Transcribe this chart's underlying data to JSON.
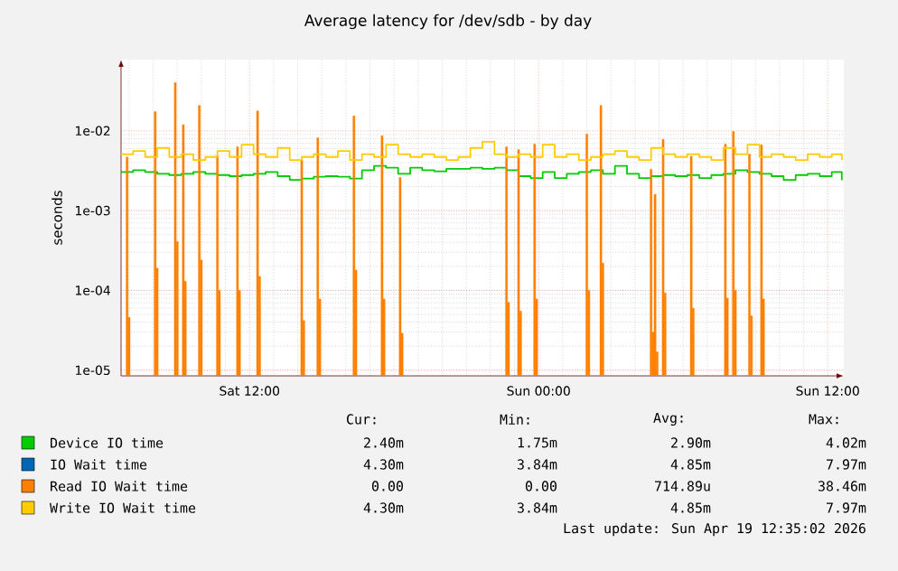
{
  "chart_data": {
    "type": "step",
    "title": "Average latency for /dev/sdb - by day",
    "ylabel": "seconds",
    "log": "y",
    "grid": true,
    "legend": "bottom",
    "xlim": [
      "2026-04-18T06:40",
      "2026-04-19T12:40"
    ],
    "xticks": [
      {
        "value": "2026-04-18T12:00",
        "label": "Sat 12:00"
      },
      {
        "value": "2026-04-19T00:00",
        "label": "Sun 00:00"
      },
      {
        "value": "2026-04-19T12:00",
        "label": "Sun 12:00"
      }
    ],
    "ylim": [
      8.5e-06,
      0.078
    ],
    "yticks": [
      {
        "value": 1e-05,
        "label": "1e-05"
      },
      {
        "value": 0.0001,
        "label": "1e-04"
      },
      {
        "value": 0.001,
        "label": "1e-03"
      },
      {
        "value": 0.01,
        "label": "1e-02"
      }
    ],
    "x": [
      "2026-04-18T06:40",
      "2026-04-18T07:10",
      "2026-04-18T07:40",
      "2026-04-18T08:10",
      "2026-04-18T08:40",
      "2026-04-18T09:10",
      "2026-04-18T09:40",
      "2026-04-18T10:10",
      "2026-04-18T10:40",
      "2026-04-18T11:10",
      "2026-04-18T11:40",
      "2026-04-18T12:10",
      "2026-04-18T12:40",
      "2026-04-18T13:10",
      "2026-04-18T13:40",
      "2026-04-18T14:10",
      "2026-04-18T14:40",
      "2026-04-18T15:10",
      "2026-04-18T15:40",
      "2026-04-18T16:10",
      "2026-04-18T16:40",
      "2026-04-18T17:10",
      "2026-04-18T17:40",
      "2026-04-18T18:10",
      "2026-04-18T18:40",
      "2026-04-18T19:10",
      "2026-04-18T19:40",
      "2026-04-18T20:10",
      "2026-04-18T20:40",
      "2026-04-18T21:10",
      "2026-04-18T21:40",
      "2026-04-18T22:10",
      "2026-04-18T22:40",
      "2026-04-18T23:10",
      "2026-04-18T23:40",
      "2026-04-19T00:10",
      "2026-04-19T00:40",
      "2026-04-19T01:10",
      "2026-04-19T01:40",
      "2026-04-19T02:10",
      "2026-04-19T02:40",
      "2026-04-19T03:10",
      "2026-04-19T03:40",
      "2026-04-19T04:10",
      "2026-04-19T04:40",
      "2026-04-19T05:10",
      "2026-04-19T05:40",
      "2026-04-19T06:10",
      "2026-04-19T06:40",
      "2026-04-19T07:10",
      "2026-04-19T07:40",
      "2026-04-19T08:10",
      "2026-04-19T08:40",
      "2026-04-19T09:10",
      "2026-04-19T09:40",
      "2026-04-19T10:10",
      "2026-04-19T10:40",
      "2026-04-19T11:10",
      "2026-04-19T11:40",
      "2026-04-19T12:10",
      "2026-04-19T12:35"
    ],
    "series": [
      {
        "name": "Device IO time",
        "color": "#00cc00",
        "values": [
          0.00305,
          0.00321,
          0.00305,
          0.00289,
          0.00279,
          0.00289,
          0.00305,
          0.00289,
          0.00279,
          0.0027,
          0.00279,
          0.00289,
          0.00305,
          0.0027,
          0.00243,
          0.00252,
          0.00265,
          0.0027,
          0.00265,
          0.00252,
          0.00321,
          0.00363,
          0.00344,
          0.00289,
          0.00344,
          0.00321,
          0.0031,
          0.00333,
          0.00333,
          0.00344,
          0.00333,
          0.00344,
          0.00321,
          0.0027,
          0.00256,
          0.00305,
          0.00256,
          0.00289,
          0.00305,
          0.00321,
          0.00289,
          0.00363,
          0.00289,
          0.00256,
          0.0027,
          0.00279,
          0.0027,
          0.00279,
          0.00256,
          0.00279,
          0.00289,
          0.00321,
          0.00305,
          0.00289,
          0.0027,
          0.00243,
          0.00279,
          0.00289,
          0.0027,
          0.00305,
          0.0024
        ]
      },
      {
        "name": "IO Wait time",
        "color": "#0066b3",
        "values": [
          null,
          null,
          null,
          null,
          null,
          null,
          null,
          null,
          null,
          null,
          null,
          null,
          null,
          null,
          null,
          null,
          null,
          null,
          null,
          null,
          null,
          null,
          null,
          null,
          null,
          null,
          null,
          null,
          null,
          null,
          null,
          null,
          null,
          null,
          null,
          null,
          null,
          null,
          null,
          null,
          null,
          null,
          null,
          null,
          null,
          null,
          null,
          null,
          null,
          null,
          null,
          null,
          null,
          null,
          null,
          null,
          null,
          null,
          null,
          null,
          null
        ]
      },
      {
        "name": "Read IO Wait time",
        "color": "#ff8000",
        "type": "bar",
        "x": [
          "2026-04-18T06:55",
          "2026-04-18T07:00",
          "2026-04-18T08:05",
          "2026-04-18T08:10",
          "2026-04-18T08:55",
          "2026-04-18T09:00",
          "2026-04-18T09:15",
          "2026-04-18T09:20",
          "2026-04-18T09:55",
          "2026-04-18T10:00",
          "2026-04-18T10:40",
          "2026-04-18T10:45",
          "2026-04-18T11:30",
          "2026-04-18T11:35",
          "2026-04-18T12:20",
          "2026-04-18T12:25",
          "2026-04-18T14:10",
          "2026-04-18T14:15",
          "2026-04-18T14:50",
          "2026-04-18T14:55",
          "2026-04-18T16:20",
          "2026-04-18T16:25",
          "2026-04-18T17:30",
          "2026-04-18T17:35",
          "2026-04-18T18:15",
          "2026-04-18T18:20",
          "2026-04-18T22:40",
          "2026-04-18T22:45",
          "2026-04-18T23:10",
          "2026-04-18T23:15",
          "2026-04-18T23:50",
          "2026-04-18T23:55",
          "2026-04-19T02:00",
          "2026-04-19T02:05",
          "2026-04-19T02:35",
          "2026-04-19T02:40",
          "2026-04-19T04:40",
          "2026-04-19T04:45",
          "2026-04-19T04:50",
          "2026-04-19T04:55",
          "2026-04-19T05:10",
          "2026-04-19T05:15",
          "2026-04-19T06:20",
          "2026-04-19T06:25",
          "2026-04-19T07:45",
          "2026-04-19T07:50",
          "2026-04-19T08:05",
          "2026-04-19T08:10",
          "2026-04-19T08:45",
          "2026-04-19T08:50",
          "2026-04-19T09:15",
          "2026-04-19T09:20"
        ],
        "values": [
          0.0047,
          4.6e-05,
          0.0174,
          0.00019,
          0.04,
          0.00041,
          0.0119,
          0.00013,
          0.0208,
          0.00024,
          0.0049,
          0.0001,
          0.0063,
          0.0001,
          0.0178,
          0.00015,
          0.0043,
          4.2e-05,
          0.0082,
          7.8e-05,
          0.0154,
          0.00018,
          0.0087,
          7.8e-05,
          0.0026,
          2.9e-05,
          0.0063,
          7.1e-05,
          0.0058,
          5.5e-05,
          0.0068,
          7.8e-05,
          0.0091,
          0.0001,
          0.0208,
          0.00022,
          0.0033,
          3e-05,
          0.0016,
          1.7e-05,
          0.0078,
          9.3e-05,
          0.0048,
          6e-05,
          0.0068,
          8e-05,
          0.0098,
          0.0001,
          0.0051,
          4.8e-05,
          0.0067,
          7.8e-05
        ]
      },
      {
        "name": "Write IO Wait time",
        "color": "#ffcc00",
        "values": [
          0.0051,
          0.0056,
          0.0047,
          0.0061,
          0.0047,
          0.0051,
          0.0043,
          0.0047,
          0.0056,
          0.0047,
          0.0067,
          0.0051,
          0.0047,
          0.0061,
          0.0043,
          0.0047,
          0.0051,
          0.0047,
          0.0056,
          0.0043,
          0.0051,
          0.0047,
          0.0067,
          0.0051,
          0.0047,
          0.0051,
          0.0047,
          0.0043,
          0.0047,
          0.0061,
          0.0073,
          0.0051,
          0.0047,
          0.0051,
          0.0047,
          0.0067,
          0.0047,
          0.0051,
          0.0043,
          0.0047,
          0.0051,
          0.0056,
          0.0047,
          0.0043,
          0.0061,
          0.0051,
          0.0047,
          0.0051,
          0.0047,
          0.0043,
          0.0061,
          0.0051,
          0.0067,
          0.0047,
          0.0051,
          0.0047,
          0.0043,
          0.0051,
          0.0047,
          0.0051,
          0.0043
        ]
      }
    ],
    "annotations": [
      "Cur:",
      "Min:",
      "Avg:",
      "Max:",
      "2.40m",
      "1.75m",
      "2.90m",
      "4.02m",
      "4.30m",
      "3.84m",
      "4.85m",
      "7.97m",
      "0.00",
      "0.00",
      "714.89u",
      "38.46m",
      "4.30m",
      "3.84m",
      "4.85m",
      "7.97m",
      "Last update:  Sun Apr 19 12:35:02 2026"
    ]
  }
}
